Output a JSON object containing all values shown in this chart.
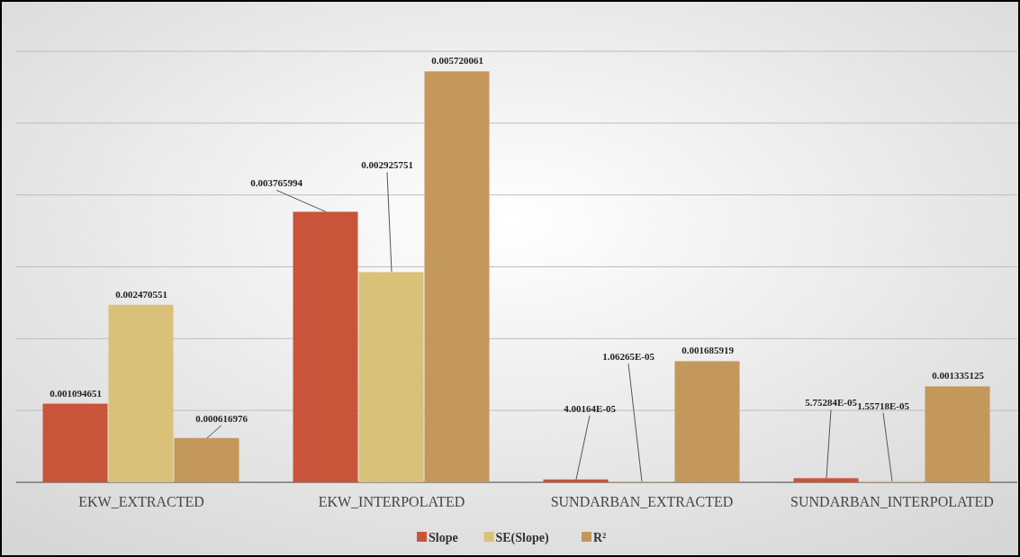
{
  "chart_data": {
    "type": "bar",
    "categories": [
      "EKW_EXTRACTED",
      "EKW_INTERPOLATED",
      "SUNDARBAN_EXTRACTED",
      "SUNDARBAN_INTERPOLATED"
    ],
    "series": [
      {
        "name": "Slope",
        "color": "#c8553a",
        "values": [
          0.001094651,
          0.003765994,
          4.00164e-05,
          5.75284e-05
        ],
        "value_labels": [
          "0.001094651",
          "0.003765994",
          "4.00164E-05",
          "5.75284E-05"
        ]
      },
      {
        "name": "SE(Slope)",
        "color": "#d9c17a",
        "values": [
          0.002470551,
          0.002925751,
          1.06265e-05,
          1.55718e-05
        ],
        "value_labels": [
          "0.002470551",
          "0.002925751",
          "1.06265E-05",
          "1.55718E-05"
        ]
      },
      {
        "name": "R²",
        "color": "#c4975a",
        "values": [
          0.000616976,
          0.005720061,
          0.001685919,
          0.001335125
        ],
        "value_labels": [
          "0.000616976",
          "0.005720061",
          "0.001685919",
          "0.001335125"
        ]
      }
    ],
    "ylim": [
      0,
      0.006
    ],
    "yticks": [
      {
        "value": 0,
        "label": null
      },
      {
        "value": 0.001,
        "label": null
      },
      {
        "value": 0.002,
        "label": null
      },
      {
        "value": 0.003,
        "label": null
      },
      {
        "value": 0.004,
        "label": null
      },
      {
        "value": 0.005,
        "label": null
      },
      {
        "value": 0.006,
        "label": null
      }
    ],
    "tick_labels": "x",
    "grid": "y",
    "legend": "bottom"
  }
}
